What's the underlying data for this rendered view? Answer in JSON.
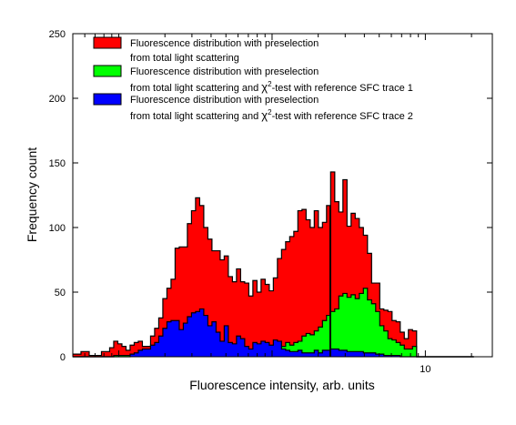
{
  "chart_data": {
    "type": "histogram",
    "x_scale": "log",
    "xlabel": "Fluorescence intensity, arb. units",
    "ylabel": "Frequency count",
    "ylim": [
      0,
      250
    ],
    "y_ticks": [
      "0",
      "50",
      "100",
      "150",
      "200",
      "250"
    ],
    "x_tick_labels": [
      {
        "value": 10,
        "label": "10"
      }
    ],
    "grid": false,
    "legend_position": "top-left",
    "bin_edges_log10": [
      -2.3,
      -2.2733,
      -2.2466,
      -2.2199,
      -2.1932,
      -2.1665,
      -2.1398,
      -2.1131,
      -2.0864,
      -2.0597,
      -2.033,
      -2.0063,
      -1.9796,
      -1.9529,
      -1.9262,
      -1.8995,
      -1.8728,
      -1.8461,
      -1.8194,
      -1.7927,
      -1.766,
      -1.7393,
      -1.7126,
      -1.6859,
      -1.6592,
      -1.6325,
      -1.6058,
      -1.5791,
      -1.5524,
      -1.5257,
      -1.499,
      -1.4723,
      -1.4456,
      -1.4189,
      -1.3922,
      -1.3655,
      -1.3388,
      -1.3121,
      -1.2854,
      -1.2587,
      -1.232,
      -1.2053,
      -1.1786,
      -1.1519,
      -1.1252,
      -1.0985,
      -1.0718,
      -1.0451,
      -1.0184,
      -0.9917,
      -0.965,
      -0.9383,
      -0.9116,
      -0.8849,
      -0.8582,
      -0.8315,
      -0.8048,
      -0.7781,
      -0.7514,
      -0.7247,
      -0.698,
      -0.6713,
      -0.6446,
      -0.6179,
      -0.5912,
      -0.5645,
      -0.5378,
      -0.5111,
      -0.4844,
      -0.4577,
      -0.431,
      -0.4043,
      -0.3776,
      -0.3509,
      -0.3242,
      -0.2975,
      -0.2708,
      -0.2441,
      -0.2174,
      -0.1907,
      -0.164,
      -0.1373,
      -0.1106,
      -0.0839,
      -0.0572,
      -0.0305,
      -0.0038,
      0.0229,
      0.0496,
      0.0763,
      0.103,
      0.1297,
      0.1564,
      0.1831,
      0.2098,
      0.2365,
      0.2632,
      0.2899,
      0.3166
    ],
    "series": [
      {
        "name": "Fluorescence distribution with preselection from total light scattering",
        "color": "#ff0000",
        "values": [
          2,
          2,
          4,
          4,
          1,
          1,
          1,
          4,
          4,
          7,
          12,
          10,
          8,
          5,
          9,
          11,
          12,
          8,
          8,
          16,
          22,
          30,
          45,
          53,
          60,
          84,
          85,
          85,
          103,
          113,
          123,
          117,
          100,
          91,
          82,
          82,
          75,
          78,
          62,
          58,
          68,
          58,
          57,
          47,
          59,
          50,
          60,
          56,
          51,
          61,
          76,
          83,
          89,
          93,
          97,
          113,
          114,
          106,
          100,
          113,
          100,
          104,
          117,
          143,
          120,
          112,
          137,
          101,
          111,
          107,
          100,
          94,
          80,
          57,
          57,
          37,
          36,
          35,
          28,
          27,
          19,
          14,
          21,
          20,
          0,
          0,
          0,
          0,
          0,
          0,
          0,
          0,
          0,
          0,
          0,
          0,
          0,
          0
        ]
      },
      {
        "name": "Fluorescence distribution with preselection from total light scattering and χ²-test with reference SFC trace 1",
        "color": "#00ff00",
        "values": [
          0,
          0,
          0,
          0,
          0,
          0,
          0,
          0,
          0,
          0,
          1,
          1,
          1,
          1,
          1,
          1,
          2,
          2,
          2,
          2,
          2,
          2,
          3,
          3,
          3,
          3,
          3,
          5,
          5,
          5,
          5,
          4,
          3,
          3,
          3,
          3,
          4,
          4,
          3,
          3,
          4,
          4,
          4,
          5,
          5,
          5,
          5,
          5,
          6,
          6,
          9,
          8,
          11,
          9,
          11,
          12,
          16,
          18,
          17,
          20,
          23,
          28,
          32,
          35,
          37,
          47,
          49,
          46,
          48,
          45,
          49,
          53,
          44,
          41,
          35,
          24,
          20,
          14,
          13,
          11,
          9,
          6,
          6,
          8,
          0,
          0,
          0,
          0,
          0,
          0,
          0,
          0,
          0,
          0,
          0,
          0,
          0,
          0
        ]
      },
      {
        "name": "Fluorescence distribution with preselection from total light scattering and χ²-test with reference SFC trace 2",
        "color": "#0000ff",
        "values": [
          0,
          0,
          0,
          0,
          0,
          0,
          0,
          0,
          0,
          0,
          0,
          0,
          0,
          0,
          2,
          3,
          5,
          6,
          6,
          9,
          11,
          16,
          22,
          27,
          28,
          28,
          21,
          26,
          31,
          34,
          35,
          37,
          32,
          24,
          27,
          19,
          12,
          24,
          11,
          10,
          16,
          14,
          8,
          6,
          11,
          10,
          12,
          11,
          9,
          13,
          12,
          6,
          5,
          4,
          4,
          5,
          3,
          3,
          3,
          5,
          3,
          5,
          5,
          6,
          6,
          5,
          5,
          4,
          4,
          4,
          4,
          3,
          3,
          3,
          2,
          2,
          1,
          1,
          1,
          1,
          0,
          0,
          0,
          0,
          0,
          0,
          0,
          0,
          0,
          0,
          0,
          0,
          0,
          0,
          0,
          0,
          0,
          0
        ]
      }
    ],
    "marker_line": {
      "x_log10": -0.62,
      "y_top": 117
    }
  },
  "legend": {
    "entry1_line1": "Fluorescence distribution with preselection",
    "entry1_line2": "from total light scattering",
    "entry2_line1": "Fluorescence distribution with preselection",
    "entry2_line2_pre": "from total light scattering and ",
    "entry2_line2_chi": "χ",
    "entry2_line2_sup": "2",
    "entry2_line2_post": "-test with reference SFC trace 1",
    "entry3_line1": "Fluorescence distribution with preselection",
    "entry3_line2_pre": "from total light scattering and ",
    "entry3_line2_chi": "χ",
    "entry3_line2_sup": "2",
    "entry3_line2_post": "-test with reference SFC trace 2"
  },
  "colors": {
    "red": "#ff0000",
    "green": "#00ff00",
    "blue": "#0000ff",
    "axis": "#000000"
  }
}
